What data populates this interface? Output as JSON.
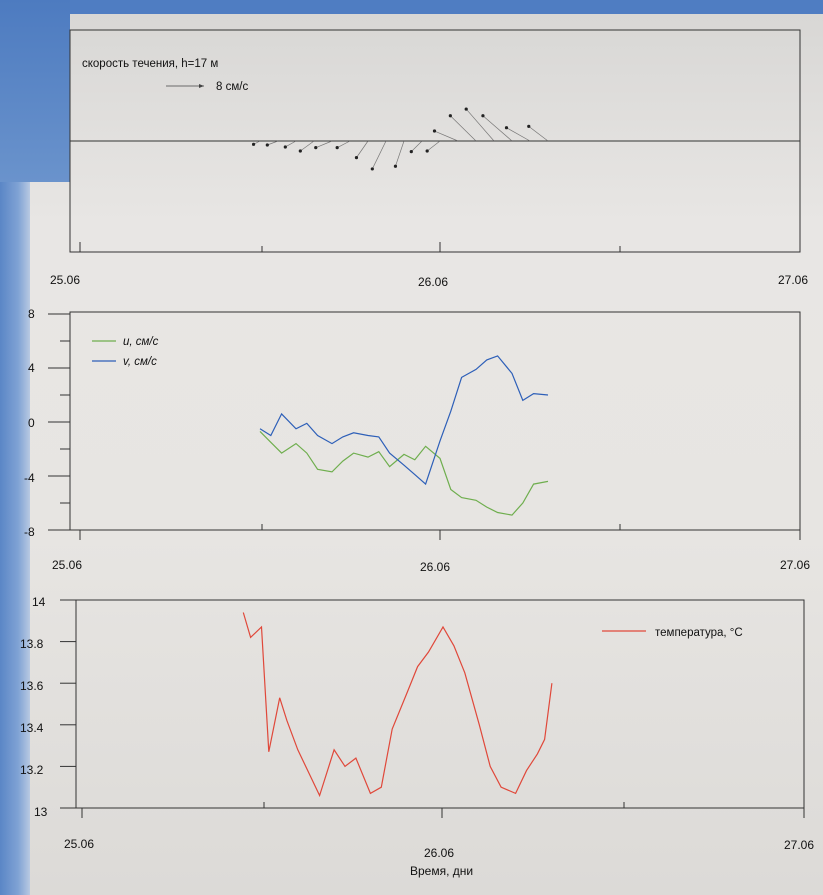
{
  "colors": {
    "u": "#6fae4e",
    "v": "#2d5fb8",
    "temperature": "#e0483a",
    "arrows": "#555555",
    "axes": "#333333"
  },
  "panel1": {
    "title": "скорость течения, h=17 м",
    "scale_label": "8 см/с",
    "dates": [
      "25.06",
      "26.06",
      "27.06"
    ]
  },
  "panel2": {
    "legend_u": "u, см/с",
    "legend_v": "v, см/с",
    "dates": [
      "25.06",
      "26.06",
      "27.06"
    ],
    "yticks": [
      "8",
      "4",
      "0",
      "-4",
      "-8"
    ]
  },
  "panel3": {
    "legend": "температура, °С",
    "dates": [
      "25.06",
      "26.06",
      "27.06"
    ],
    "yticks": [
      "14",
      "13.8",
      "13.6",
      "13.4",
      "13.2",
      "13"
    ],
    "xlabel": "Время, дни"
  },
  "chart_data": [
    {
      "type": "line",
      "title": "скорость течения, h=17 м",
      "note": "stick (vector) plot of current velocity",
      "x_ticks": [
        "25.06",
        "26.06",
        "27.06"
      ],
      "xlim": [
        25.0,
        27.0
      ],
      "x": [
        25.5,
        25.55,
        25.6,
        25.65,
        25.7,
        25.75,
        25.8,
        25.85,
        25.9,
        25.95,
        26.0,
        26.05,
        26.1,
        26.15,
        26.2,
        26.25,
        26.3
      ],
      "series": [
        {
          "name": "u, см/с",
          "values": [
            -1.5,
            -2.5,
            -2.5,
            -3.2,
            -3.8,
            -3.0,
            -2.7,
            -3.2,
            -2.0,
            -2.5,
            -3.0,
            -5.5,
            -6.0,
            -6.5,
            -6.8,
            -5.5,
            -4.5
          ]
        },
        {
          "name": "v, см/с",
          "values": [
            -0.5,
            -0.6,
            -0.9,
            -1.5,
            -1.0,
            -1.0,
            -2.5,
            -4.2,
            -3.8,
            -1.6,
            -1.5,
            1.5,
            3.8,
            4.8,
            3.8,
            2.0,
            2.2
          ]
        }
      ]
    },
    {
      "type": "line",
      "x_ticks": [
        "25.06",
        "26.06",
        "27.06"
      ],
      "xlim": [
        25.0,
        27.0
      ],
      "ylim": [
        -8,
        8
      ],
      "y_ticks": [
        -8,
        -4,
        0,
        4,
        8
      ],
      "x": [
        25.5,
        25.53,
        25.56,
        25.6,
        25.63,
        25.66,
        25.7,
        25.73,
        25.76,
        25.8,
        25.83,
        25.86,
        25.9,
        25.93,
        25.96,
        26.0,
        26.03,
        26.06,
        26.1,
        26.13,
        26.16,
        26.2,
        26.23,
        26.26,
        26.3
      ],
      "series": [
        {
          "name": "u, см/с",
          "values": [
            -0.7,
            -1.5,
            -2.3,
            -1.6,
            -2.3,
            -3.5,
            -3.7,
            -2.9,
            -2.3,
            -2.6,
            -2.2,
            -3.3,
            -2.4,
            -2.8,
            -1.8,
            -2.7,
            -5.0,
            -5.6,
            -5.8,
            -6.3,
            -6.7,
            -6.9,
            -6.0,
            -4.6,
            -4.4
          ]
        },
        {
          "name": "v, см/с",
          "values": [
            -0.5,
            -1.0,
            0.6,
            -0.5,
            -0.1,
            -1.0,
            -1.6,
            -1.1,
            -0.8,
            -1.0,
            -1.1,
            -2.3,
            -3.2,
            -3.9,
            -4.6,
            -1.4,
            0.8,
            3.3,
            3.9,
            4.6,
            4.9,
            3.6,
            1.6,
            2.1,
            2.0
          ]
        }
      ]
    },
    {
      "type": "line",
      "x_ticks": [
        "25.06",
        "26.06",
        "27.06"
      ],
      "xlim": [
        25.0,
        27.0
      ],
      "ylim": [
        13.0,
        14.0
      ],
      "y_ticks": [
        13.0,
        13.2,
        13.4,
        13.6,
        13.8,
        14.0
      ],
      "xlabel": "Время, дни",
      "x": [
        25.45,
        25.47,
        25.5,
        25.52,
        25.55,
        25.57,
        25.6,
        25.63,
        25.66,
        25.7,
        25.73,
        25.76,
        25.8,
        25.83,
        25.86,
        25.9,
        25.93,
        25.96,
        26.0,
        26.03,
        26.06,
        26.1,
        26.13,
        26.16,
        26.2,
        26.23,
        26.26,
        26.28,
        26.3
      ],
      "series": [
        {
          "name": "температура, °С",
          "values": [
            13.94,
            13.82,
            13.87,
            13.27,
            13.53,
            13.42,
            13.28,
            13.17,
            13.06,
            13.28,
            13.2,
            13.24,
            13.07,
            13.1,
            13.38,
            13.55,
            13.68,
            13.75,
            13.87,
            13.78,
            13.65,
            13.4,
            13.2,
            13.1,
            13.07,
            13.18,
            13.26,
            13.33,
            13.6
          ]
        }
      ]
    }
  ]
}
